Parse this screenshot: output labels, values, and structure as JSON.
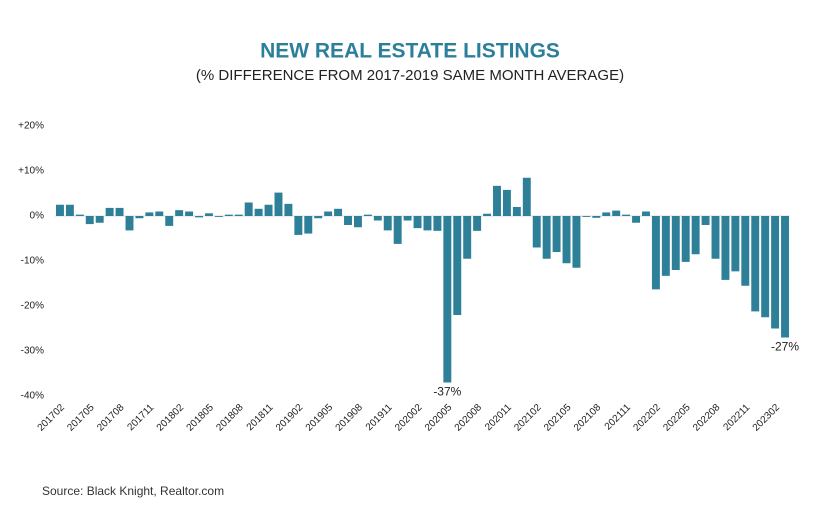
{
  "chart_data": {
    "type": "bar",
    "title": "NEW REAL ESTATE LISTINGS",
    "subtitle": "(% DIFFERENCE FROM 2017-2019 SAME MONTH AVERAGE)",
    "source": "Source: Black Knight, Realtor.com",
    "color": "#2e8099",
    "categories": [
      "201702",
      null,
      null,
      "201705",
      null,
      null,
      "201708",
      null,
      null,
      "201711",
      null,
      null,
      "201802",
      null,
      null,
      "201805",
      null,
      null,
      "201808",
      null,
      null,
      "201811",
      null,
      null,
      "201902",
      null,
      null,
      "201905",
      null,
      null,
      "201908",
      null,
      null,
      "201911",
      null,
      null,
      "202002",
      null,
      null,
      "202005",
      null,
      null,
      "202008",
      null,
      null,
      "202011",
      null,
      null,
      "202102",
      null,
      null,
      "202105",
      null,
      null,
      "202108",
      null,
      null,
      "202111",
      null,
      null,
      "202202",
      null,
      null,
      "202205",
      null,
      null,
      "202208",
      null,
      null,
      "202211",
      null,
      null,
      "202302",
      null
    ],
    "values": [
      2.5,
      2.5,
      0.3,
      -1.8,
      -1.5,
      1.8,
      1.8,
      -3.2,
      -0.5,
      0.8,
      1.0,
      -2.2,
      1.3,
      1.0,
      -0.3,
      0.6,
      -0.2,
      0.3,
      0.3,
      3.0,
      1.6,
      2.5,
      5.2,
      2.7,
      -4.2,
      -3.9,
      -0.5,
      1.0,
      1.6,
      -2.0,
      -2.5,
      0.3,
      -1.0,
      -3.2,
      -6.2,
      -1.0,
      -2.7,
      -3.2,
      -3.3,
      -37,
      -22,
      -9.5,
      -3.3,
      0.5,
      6.7,
      5.8,
      2.0,
      8.5,
      -7.0,
      -9.5,
      -8.0,
      -10.5,
      -11.5,
      -0.2,
      -0.4,
      0.8,
      1.2,
      0.3,
      -1.5,
      1.0,
      -16.3,
      -13.3,
      -12.0,
      -10.2,
      -8.5,
      -2.0,
      -9.5,
      -14.2,
      -12.3,
      -15.5,
      -21.2,
      -22.5,
      -25.0,
      -27
    ],
    "value_labels": [
      null,
      null,
      null,
      null,
      null,
      null,
      null,
      null,
      null,
      null,
      null,
      null,
      null,
      null,
      null,
      null,
      null,
      null,
      null,
      null,
      null,
      null,
      null,
      null,
      null,
      null,
      null,
      null,
      null,
      null,
      null,
      null,
      null,
      null,
      null,
      null,
      null,
      null,
      null,
      "-37%",
      null,
      null,
      null,
      null,
      null,
      null,
      null,
      null,
      null,
      null,
      null,
      null,
      null,
      null,
      null,
      null,
      null,
      null,
      null,
      null,
      null,
      null,
      null,
      null,
      null,
      null,
      null,
      null,
      null,
      null,
      null,
      null,
      null,
      "-27%"
    ],
    "ylim": [
      -40,
      20
    ],
    "yticks": [
      {
        "value": 20,
        "label": "+20%"
      },
      {
        "value": 10,
        "label": "+10%"
      },
      {
        "value": 0,
        "label": "0%"
      },
      {
        "value": -10,
        "label": "-10%"
      },
      {
        "value": -20,
        "label": "-20%"
      },
      {
        "value": -30,
        "label": "-30%"
      },
      {
        "value": -40,
        "label": "-40%"
      }
    ],
    "grid": false
  }
}
